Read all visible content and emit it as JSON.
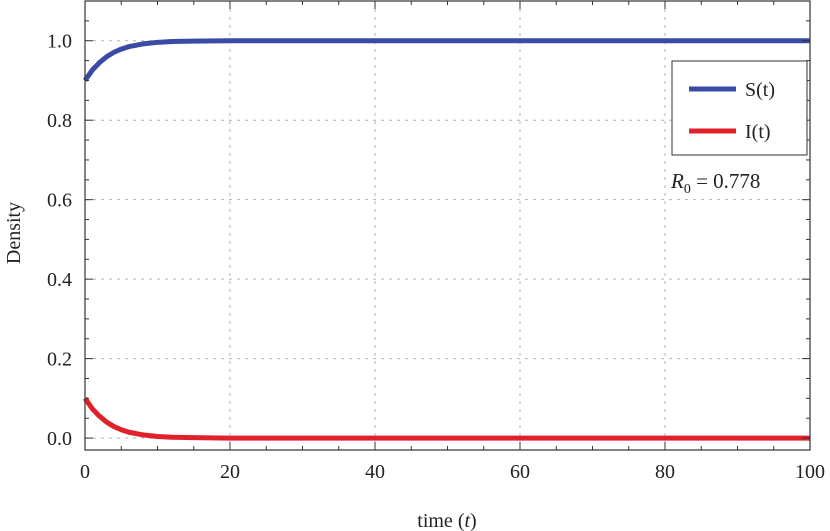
{
  "chart_data": {
    "type": "line",
    "xlabel_main": "time (",
    "xlabel_var": "t",
    "xlabel_end": ")",
    "ylabel": "Density",
    "xlim": [
      0,
      100
    ],
    "ylim": [
      -0.03,
      1.1
    ],
    "x_ticks": [
      0,
      20,
      40,
      60,
      80,
      100
    ],
    "x_tick_labels": [
      "0",
      "20",
      "40",
      "60",
      "80",
      "100"
    ],
    "y_ticks": [
      0.0,
      0.2,
      0.4,
      0.6,
      0.8,
      1.0
    ],
    "y_tick_labels": [
      "0.0",
      "0.2",
      "0.4",
      "0.6",
      "0.8",
      "1.0"
    ],
    "grid": true,
    "legend_position": "top-right",
    "series": [
      {
        "name": "S(t)",
        "color": "#3a4ba6",
        "x": [
          0,
          1,
          2,
          3,
          4,
          5,
          6,
          8,
          10,
          12,
          15,
          20,
          25,
          30,
          40,
          50,
          60,
          70,
          80,
          90,
          100
        ],
        "y": [
          0.9,
          0.926,
          0.945,
          0.96,
          0.971,
          0.979,
          0.985,
          0.992,
          0.996,
          0.998,
          0.999,
          1.0,
          1.0,
          1.0,
          1.0,
          1.0,
          1.0,
          1.0,
          1.0,
          1.0,
          1.0
        ]
      },
      {
        "name": "I(t)",
        "color": "#e0212b",
        "x": [
          0,
          1,
          2,
          3,
          4,
          5,
          6,
          8,
          10,
          12,
          15,
          20,
          25,
          30,
          40,
          50,
          60,
          70,
          80,
          90,
          100
        ],
        "y": [
          0.1,
          0.074,
          0.055,
          0.04,
          0.029,
          0.021,
          0.015,
          0.008,
          0.004,
          0.002,
          0.001,
          0.0,
          0.0,
          0.0,
          0.0,
          0.0,
          0.0,
          0.0,
          0.0,
          0.0,
          0.0
        ]
      }
    ],
    "annotation": {
      "symbol": "R",
      "subscript": "0",
      "text": " = 0.778"
    }
  }
}
